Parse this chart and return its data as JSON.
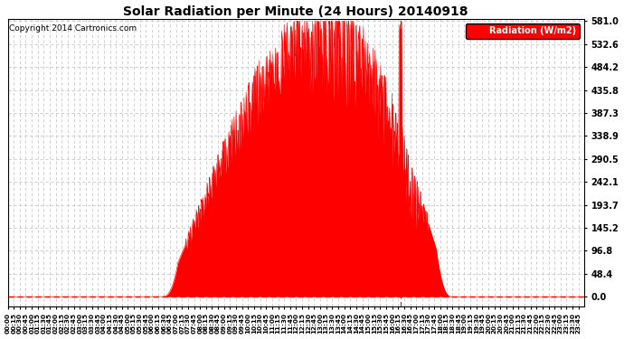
{
  "title": "Solar Radiation per Minute (24 Hours) 20140918",
  "copyright": "Copyright 2014 Cartronics.com",
  "ylabel": "Radiation (W/m2)",
  "fill_color": "#FF0000",
  "background_color": "#FFFFFF",
  "grid_color": "#C8C8C8",
  "ytick_values": [
    0.0,
    48.4,
    96.8,
    145.2,
    193.7,
    242.1,
    290.5,
    338.9,
    387.3,
    435.8,
    484.2,
    532.6,
    581.0
  ],
  "ymax": 581.0,
  "total_minutes": 1440,
  "sunrise_minute": 385,
  "sunset_minute": 1110,
  "peak_minute": 800,
  "dashed_line_color": "#FF0000",
  "legend_bg": "#FF0000",
  "legend_text_color": "#FFFFFF"
}
